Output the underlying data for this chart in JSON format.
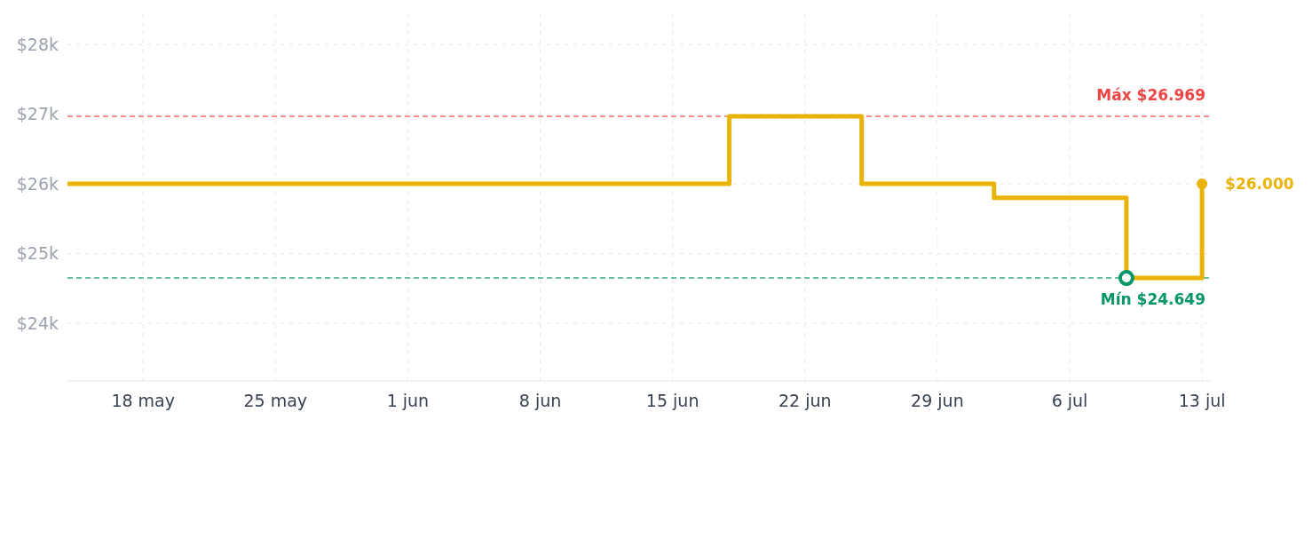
{
  "chart_data": {
    "type": "step",
    "x": [
      "--05-14",
      "--06-18",
      "--06-25",
      "--07-02",
      "--07-09",
      "--07-13"
    ],
    "series": [
      {
        "color": "#eab308",
        "values": [
          26000,
          26969,
          26000,
          25800,
          24649,
          26000
        ]
      }
    ],
    "xlim": [
      "--05-14",
      "--07-13T10:00"
    ],
    "xticks": [
      {
        "value": "--05-18",
        "label": "18 may"
      },
      {
        "value": "--05-25",
        "label": "25 may"
      },
      {
        "value": "--06-01",
        "label": "1 jun"
      },
      {
        "value": "--06-08",
        "label": "8 jun"
      },
      {
        "value": "--06-15",
        "label": "15 jun"
      },
      {
        "value": "--06-22",
        "label": "22 jun"
      },
      {
        "value": "--06-29",
        "label": "29 jun"
      },
      {
        "value": "--07-06",
        "label": "6 jul"
      },
      {
        "value": "--07-13",
        "label": "13 jul"
      }
    ],
    "ylim": [
      23170,
      28450
    ],
    "yticks": [
      {
        "value": 24000,
        "label": "$24k"
      },
      {
        "value": 25000,
        "label": "$25k"
      },
      {
        "value": 26000,
        "label": "$26k"
      },
      {
        "value": 27000,
        "label": "$27k"
      },
      {
        "value": 28000,
        "label": "$28k"
      }
    ],
    "ref_lines": [
      {
        "axis": "y",
        "value": 26969,
        "label": "Máx $26.969",
        "color": "#ef4444",
        "line_style": "dashed"
      },
      {
        "axis": "y",
        "value": 24649,
        "label": "Mín $24.649",
        "color": "#059669",
        "line_style": "dashed"
      }
    ],
    "annotations": [
      {
        "text": "$26.000",
        "x": "--07-13",
        "y": 26000
      }
    ],
    "grid": true,
    "line_style": "solid"
  }
}
